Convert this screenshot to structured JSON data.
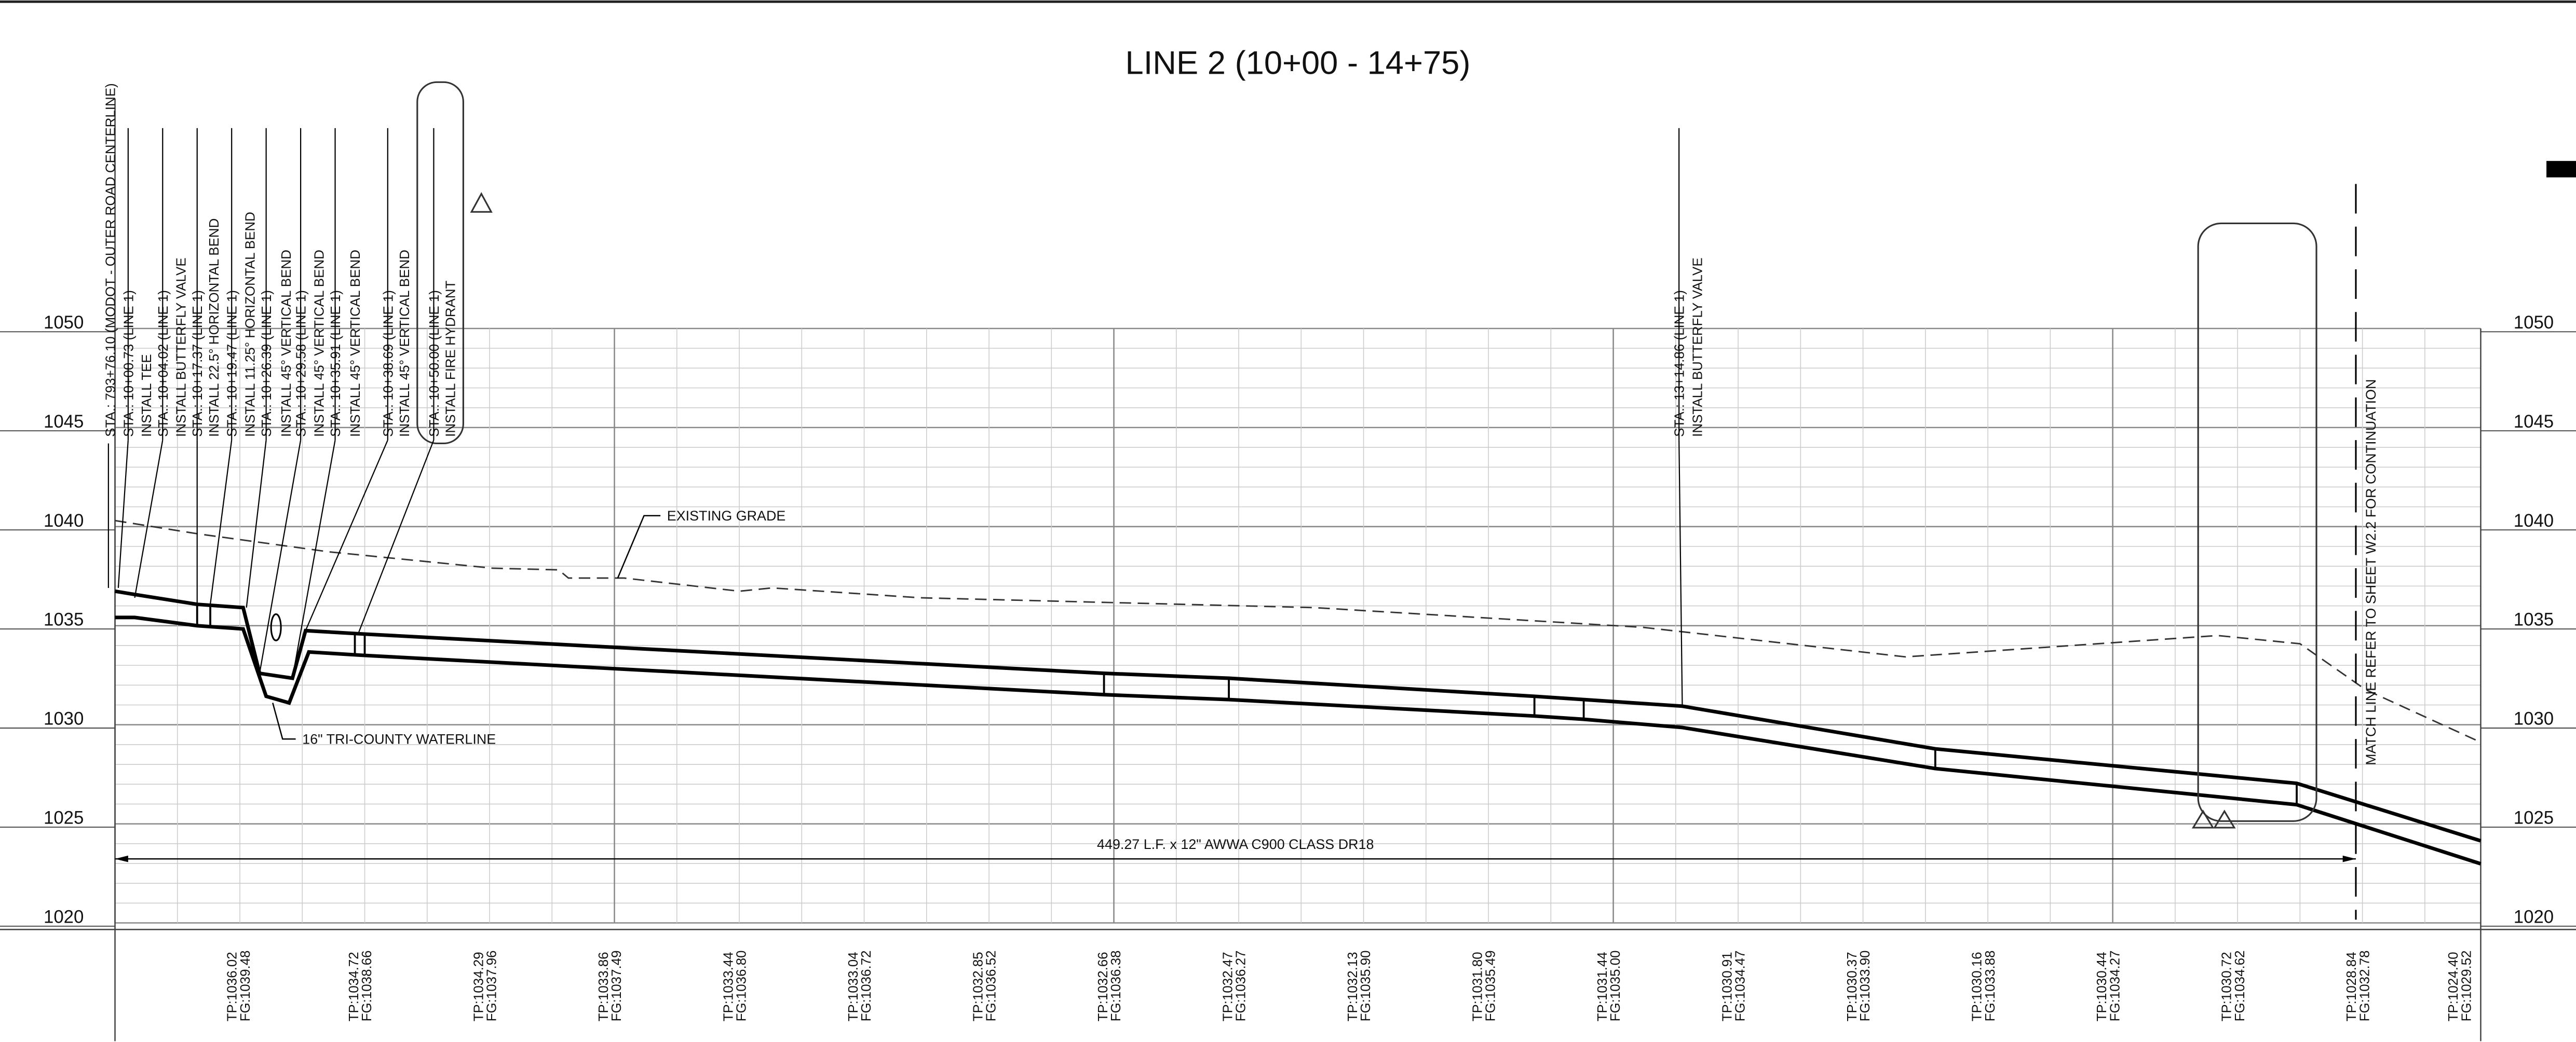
{
  "title": "LINE 2 (10+00 - 14+75)",
  "elevations": [
    1050,
    1045,
    1040,
    1035,
    1030,
    1025,
    1020
  ],
  "callouts": [
    "STA.: 793+76.10 (MODOT - OUTER ROAD CENTERLINE)",
    "STA.: 10+00.73 (LINE 1)",
    "INSTALL TEE",
    "STA.: 10+04.02 (LINE 1)",
    "INSTALL BUTTERFLY VALVE",
    "STA.: 10+17.37 (LINE 1)",
    "INSTALL 22.5° HORIZONTAL BEND",
    "STA.: 10+19.47 (LINE 1)",
    "INSTALL 11.25° HORIZONTAL BEND",
    "STA.: 10+26.39 (LINE 1)",
    "INSTALL 45° VERTICAL BEND",
    "STA.: 10+29.58 (LINE 1)",
    "INSTALL 45° VERTICAL BEND",
    "STA.: 10+35.91 (LINE 1)",
    "INSTALL 45° VERTICAL BEND",
    "STA.: 10+38.69 (LINE 1)",
    "INSTALL 45° VERTICAL BEND",
    "STA.: 10+50.00 (LINE 1)",
    "INSTALL FIRE HYDRANT",
    "STA.: 13+14.86 (LINE 1)",
    "INSTALL BUTTERFLY VALVE"
  ],
  "annotations": {
    "existing_grade": "EXISTING GRADE",
    "waterline": "16\" TRI-COUNTY WATERLINE",
    "pipe_length": "449.27 L.F. x 12\" AWWA C900 CLASS DR18",
    "match_line": "MATCH LINE REFER TO SHEET W2.2 FOR CONTINUATION"
  },
  "profile_points": [
    {
      "tp": "TP:1036.02",
      "fg": "FG:1039.48"
    },
    {
      "tp": "TP:1034.72",
      "fg": "FG:1038.66"
    },
    {
      "tp": "TP:1034.29",
      "fg": "FG:1037.96"
    },
    {
      "tp": "TP:1033.86",
      "fg": "FG:1037.49"
    },
    {
      "tp": "TP:1033.44",
      "fg": "FG:1036.80"
    },
    {
      "tp": "TP:1033.04",
      "fg": "FG:1036.72"
    },
    {
      "tp": "TP:1032.85",
      "fg": "FG:1036.52"
    },
    {
      "tp": "TP:1032.66",
      "fg": "FG:1036.38"
    },
    {
      "tp": "TP:1032.47",
      "fg": "FG:1036.27"
    },
    {
      "tp": "TP:1032.13",
      "fg": "FG:1035.90"
    },
    {
      "tp": "TP:1031.80",
      "fg": "FG:1035.49"
    },
    {
      "tp": "TP:1031.44",
      "fg": "FG:1035.00"
    },
    {
      "tp": "TP:1030.91",
      "fg": "FG:1034.47"
    },
    {
      "tp": "TP:1030.37",
      "fg": "FG:1033.90"
    },
    {
      "tp": "TP:1030.16",
      "fg": "FG:1033.88"
    },
    {
      "tp": "TP:1030.44",
      "fg": "FG:1034.27"
    },
    {
      "tp": "TP:1030.72",
      "fg": "FG:1034.62"
    },
    {
      "tp": "TP:1028.84",
      "fg": "FG:1032.78"
    },
    {
      "tp": "TP:1024.40",
      "fg": "FG:1029.52"
    }
  ]
}
